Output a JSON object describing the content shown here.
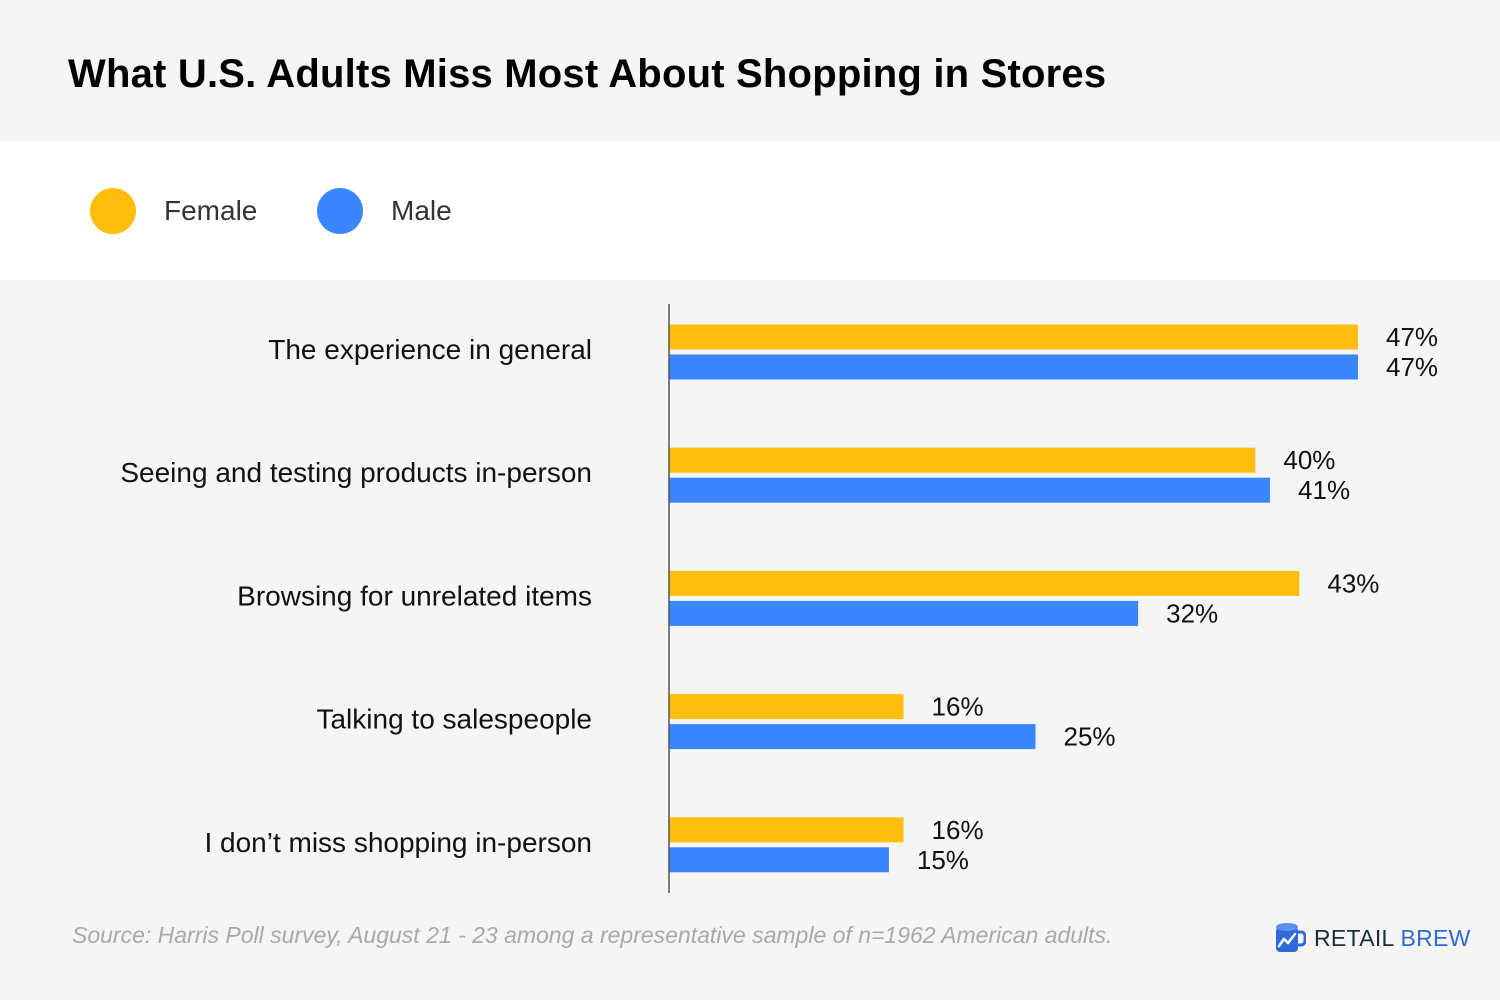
{
  "title": "What U.S. Adults Miss Most About Shopping in Stores",
  "legend": [
    {
      "label": "Female",
      "color": "#ffbe0b"
    },
    {
      "label": "Male",
      "color": "#3a86ff"
    }
  ],
  "chart_data": {
    "type": "bar",
    "orientation": "horizontal",
    "title": "What U.S. Adults Miss Most About Shopping in Stores",
    "categories": [
      "The experience in general",
      "Seeing and testing products in-person",
      "Browsing for unrelated items",
      "Talking to salespeople",
      "I don’t miss shopping in-person"
    ],
    "series": [
      {
        "name": "Female",
        "color": "#ffbe0b",
        "values": [
          47,
          40,
          43,
          16,
          16
        ],
        "labels": [
          "47%",
          "40%",
          "43%",
          "16%",
          "16%"
        ]
      },
      {
        "name": "Male",
        "color": "#3a86ff",
        "values": [
          47,
          41,
          32,
          25,
          15
        ],
        "labels": [
          "47%",
          "41%",
          "32%",
          "25%",
          "15%"
        ]
      }
    ],
    "unit": "%",
    "grid": false,
    "legend_position": "top-left"
  },
  "source": "Source: Harris Poll survey, August 21 - 23 among a representative sample of n=1962 American adults.",
  "brand": {
    "word1": "RETAIL",
    "word2": "BREW",
    "icon": "retail-brew-mug-icon"
  }
}
